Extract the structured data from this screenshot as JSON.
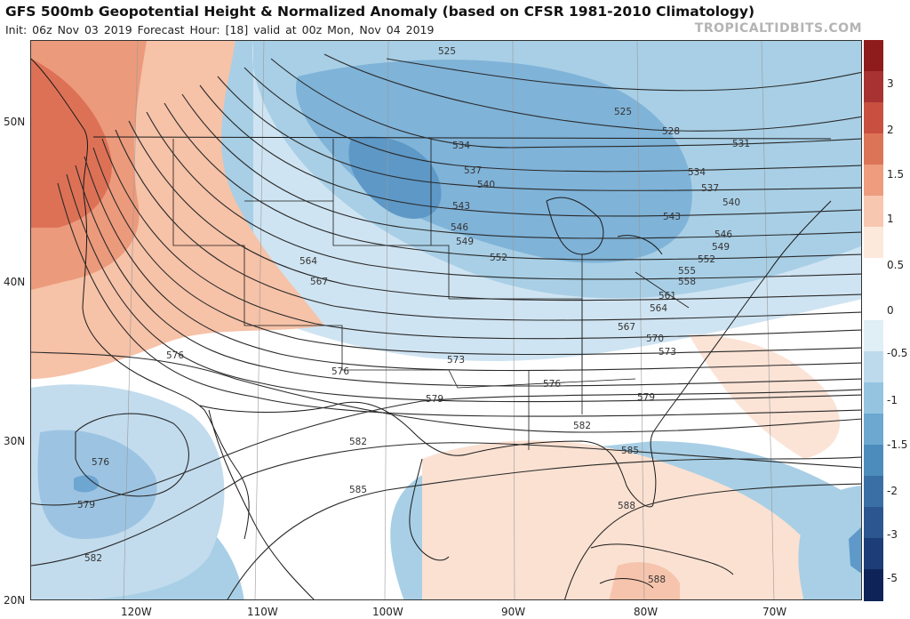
{
  "header": {
    "title": "GFS 500mb Geopotential Height & Normalized Anomaly (based on CFSR 1981-2010 Climatology)",
    "subtitle": "Init: 06z Nov 03 2019   Forecast Hour: [18]   valid at 00z Mon, Nov 04 2019",
    "brand": "TROPICALTIDBITS.COM"
  },
  "axes": {
    "lat_labels": [
      "50N",
      "40N",
      "30N",
      "20N"
    ],
    "lon_labels": [
      "120W",
      "110W",
      "100W",
      "90W",
      "80W",
      "70W"
    ]
  },
  "colorbar": {
    "labels": [
      "3",
      "2",
      "1.5",
      "1",
      "0.5",
      "0",
      "-0.5",
      "-1",
      "-1.5",
      "-2",
      "-3",
      "-5"
    ],
    "colors": [
      "#8e1c1c",
      "#a83232",
      "#c85040",
      "#dc7458",
      "#ee9c7e",
      "#f8c7b0",
      "#fde8dc",
      "#ffffff",
      "#ffffff",
      "#e0eef6",
      "#bcdaec",
      "#94c4e0",
      "#6ca8d0",
      "#4c8cbc",
      "#3a6fa6",
      "#2c5690",
      "#1c3d78",
      "#0e2458"
    ]
  },
  "contour_labels": [
    {
      "id": "c525a",
      "text": "525"
    },
    {
      "id": "c525b",
      "text": "525"
    },
    {
      "id": "c528",
      "text": "528"
    },
    {
      "id": "c531",
      "text": "531"
    },
    {
      "id": "c534a",
      "text": "534"
    },
    {
      "id": "c534b",
      "text": "534"
    },
    {
      "id": "c537a",
      "text": "537"
    },
    {
      "id": "c537b",
      "text": "537"
    },
    {
      "id": "c540a",
      "text": "540"
    },
    {
      "id": "c540b",
      "text": "540"
    },
    {
      "id": "c543a",
      "text": "543"
    },
    {
      "id": "c543b",
      "text": "543"
    },
    {
      "id": "c546a",
      "text": "546"
    },
    {
      "id": "c546b",
      "text": "546"
    },
    {
      "id": "c549a",
      "text": "549"
    },
    {
      "id": "c549b",
      "text": "549"
    },
    {
      "id": "c552a",
      "text": "552"
    },
    {
      "id": "c552b",
      "text": "552"
    },
    {
      "id": "c555",
      "text": "555"
    },
    {
      "id": "c558",
      "text": "558"
    },
    {
      "id": "c561",
      "text": "561"
    },
    {
      "id": "c564a",
      "text": "564"
    },
    {
      "id": "c564b",
      "text": "564"
    },
    {
      "id": "c567a",
      "text": "567"
    },
    {
      "id": "c567b",
      "text": "567"
    },
    {
      "id": "c570",
      "text": "570"
    },
    {
      "id": "c573a",
      "text": "573"
    },
    {
      "id": "c573b",
      "text": "573"
    },
    {
      "id": "c576a",
      "text": "576"
    },
    {
      "id": "c576b",
      "text": "576"
    },
    {
      "id": "c576c",
      "text": "576"
    },
    {
      "id": "c576d",
      "text": "576"
    },
    {
      "id": "c579a",
      "text": "579"
    },
    {
      "id": "c579b",
      "text": "579"
    },
    {
      "id": "c579c",
      "text": "579"
    },
    {
      "id": "c582a",
      "text": "582"
    },
    {
      "id": "c582b",
      "text": "582"
    },
    {
      "id": "c582c",
      "text": "582"
    },
    {
      "id": "c585a",
      "text": "585"
    },
    {
      "id": "c585b",
      "text": "585"
    },
    {
      "id": "c588a",
      "text": "588"
    },
    {
      "id": "c588b",
      "text": "588"
    }
  ]
}
